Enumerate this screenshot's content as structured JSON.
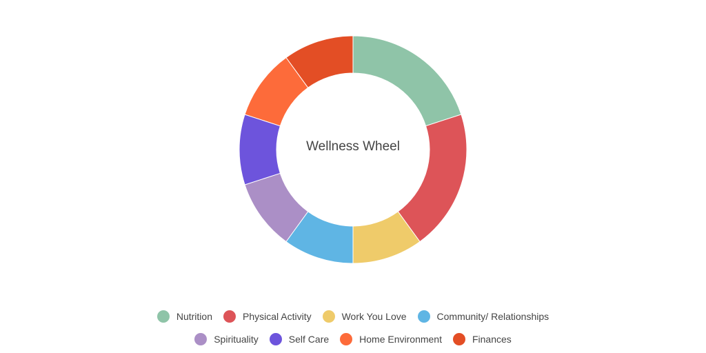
{
  "chart_data": {
    "type": "pie",
    "subtype": "donut",
    "title": "Wellness Wheel",
    "categories": [
      "Nutrition",
      "Physical Activity",
      "Work You Love",
      "Community/ Relationships",
      "Spirituality",
      "Self Care",
      "Home Environment",
      "Finances"
    ],
    "values": [
      20,
      20,
      10,
      10,
      10,
      10,
      10,
      10
    ],
    "colors": [
      "#8fc4a8",
      "#dd5458",
      "#efcb6a",
      "#5fb5e4",
      "#ab8fc6",
      "#6d54dc",
      "#fd6b3a",
      "#e34e25"
    ],
    "legend_position": "bottom"
  },
  "center": {
    "title": "Wellness Wheel"
  },
  "legend": {
    "row1": [
      {
        "label": "Nutrition",
        "color": "#8fc4a8"
      },
      {
        "label": "Physical Activity",
        "color": "#dd5458"
      },
      {
        "label": "Work You Love",
        "color": "#efcb6a"
      },
      {
        "label": "Community/ Relationships",
        "color": "#5fb5e4"
      }
    ],
    "row2": [
      {
        "label": "Spirituality",
        "color": "#ab8fc6"
      },
      {
        "label": "Self Care",
        "color": "#6d54dc"
      },
      {
        "label": "Home Environment",
        "color": "#fd6b3a"
      },
      {
        "label": "Finances",
        "color": "#e34e25"
      }
    ]
  }
}
